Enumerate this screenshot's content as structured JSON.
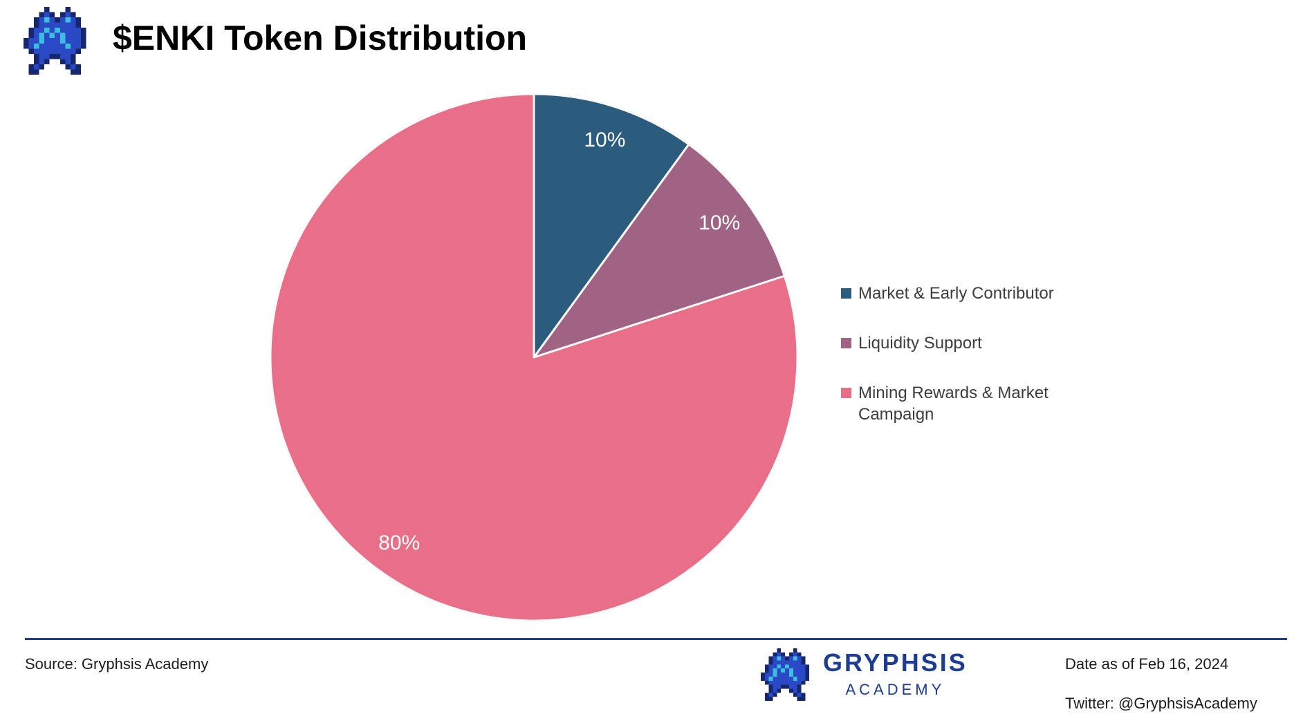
{
  "header": {
    "title": "$ENKI Token Distribution"
  },
  "chart_data": {
    "type": "pie",
    "title": "$ENKI Token Distribution",
    "start_angle_deg": 0,
    "direction": "clockwise",
    "legend_position": "right",
    "grid": false,
    "data_label_color": "#ffffff",
    "slices": [
      {
        "label": "Market & Early Contributor",
        "value": 10,
        "percent_label": "10%",
        "color": "#2b5c7d"
      },
      {
        "label": "Liquidity Support",
        "value": 10,
        "percent_label": "10%",
        "color": "#a06383"
      },
      {
        "label": "Mining Rewards & Market Campaign",
        "value": 80,
        "percent_label": "80%",
        "color": "#e96e87"
      }
    ]
  },
  "brand": {
    "logo_icon": "pixel-dragon-logo",
    "colors": {
      "navy": "#16276e",
      "blue": "#2a49c5",
      "cyan": "#3cbfdf",
      "wordmark": "#1d3c92"
    }
  },
  "footer": {
    "source": "Source: Gryphsis Academy",
    "brand_name": "GRYPHSIS",
    "brand_sub": "ACADEMY",
    "date": "Date as of Feb 16, 2024",
    "twitter": "Twitter: @GryphsisAcademy",
    "rule_color": "#1d3c92"
  }
}
